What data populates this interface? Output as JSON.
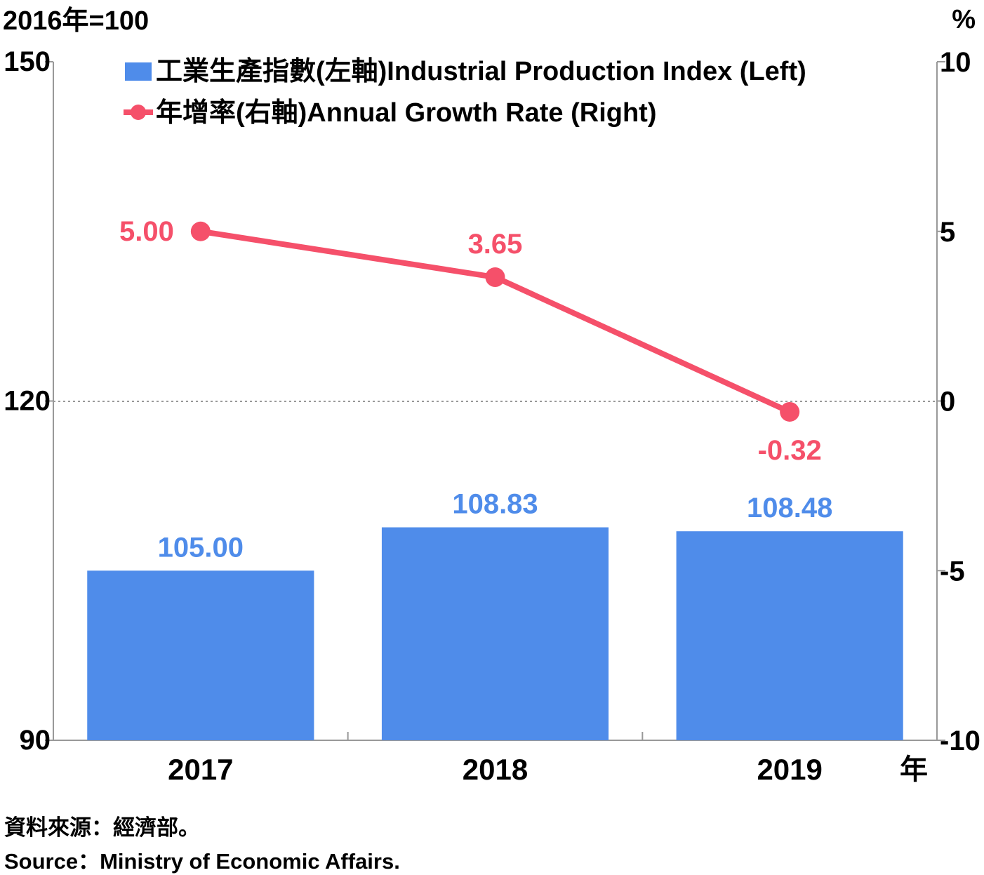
{
  "chart_data": {
    "type": "bar+line",
    "categories": [
      "2017",
      "2018",
      "2019"
    ],
    "x_unit": "年",
    "left_axis": {
      "unit_label": "2016年=100",
      "ylim": [
        90,
        150
      ],
      "ticks": [
        90,
        120,
        150
      ]
    },
    "right_axis": {
      "unit_label": "%",
      "ylim": [
        -10,
        10
      ],
      "ticks": [
        -10,
        -5,
        0,
        5,
        10
      ]
    },
    "series": [
      {
        "name": "工業生產指數(左軸)Industrial Production Index (Left)",
        "type": "bar",
        "axis": "left",
        "values": [
          105.0,
          108.83,
          108.48
        ],
        "labels": [
          "105.00",
          "108.83",
          "108.48"
        ]
      },
      {
        "name": "年增率(右軸)Annual Growth Rate (Right)",
        "type": "line",
        "axis": "right",
        "values": [
          5.0,
          3.65,
          -0.32
        ],
        "labels": [
          "5.00",
          "3.65",
          "-0.32"
        ]
      }
    ],
    "legend": "top-left",
    "zero_line": "dotted"
  },
  "colors": {
    "bar": "#4f8cea",
    "line": "#f5506a",
    "axis": "#999999",
    "text": "#000000"
  },
  "source": {
    "zh": "資料來源：經濟部。",
    "en": "Source：Ministry of Economic Affairs."
  }
}
